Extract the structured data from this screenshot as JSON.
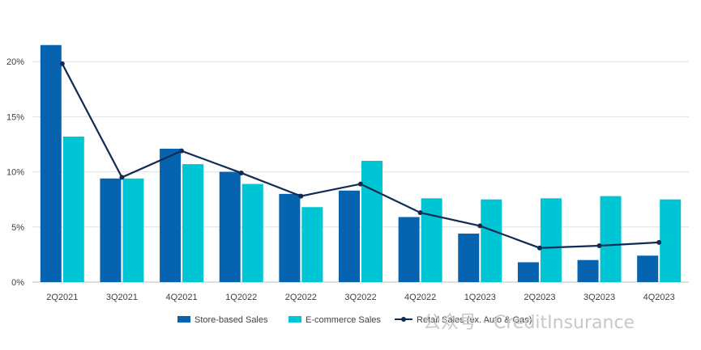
{
  "chart_data": {
    "type": "bar",
    "categories": [
      "2Q2021",
      "3Q2021",
      "4Q2021",
      "1Q2022",
      "2Q2022",
      "3Q2022",
      "4Q2022",
      "1Q2023",
      "2Q2023",
      "3Q2023",
      "4Q2023"
    ],
    "series": [
      {
        "name": "Store-based Sales",
        "kind": "bar",
        "color": "#0563b0",
        "values": [
          21.5,
          9.4,
          12.1,
          10.0,
          8.0,
          8.3,
          5.9,
          4.4,
          1.8,
          2.0,
          2.4
        ]
      },
      {
        "name": "E-commerce Sales",
        "kind": "bar",
        "color": "#00c5d4",
        "values": [
          13.2,
          9.4,
          10.7,
          8.9,
          6.8,
          11.0,
          7.6,
          7.5,
          7.6,
          7.8,
          7.5
        ]
      },
      {
        "name": "Retail Sales (ex. Auto & Gas)",
        "kind": "line",
        "color": "#0e2c55",
        "values": [
          19.8,
          9.5,
          11.9,
          9.9,
          7.8,
          8.9,
          6.3,
          5.1,
          3.1,
          3.3,
          3.6
        ]
      }
    ],
    "y_ticks": [
      "0%",
      "5%",
      "10%",
      "15%",
      "20%"
    ],
    "ylim": [
      0,
      25
    ],
    "grid": true,
    "legend_position": "bottom"
  },
  "watermark": {
    "text": "公众号 · CreditInsurance"
  }
}
